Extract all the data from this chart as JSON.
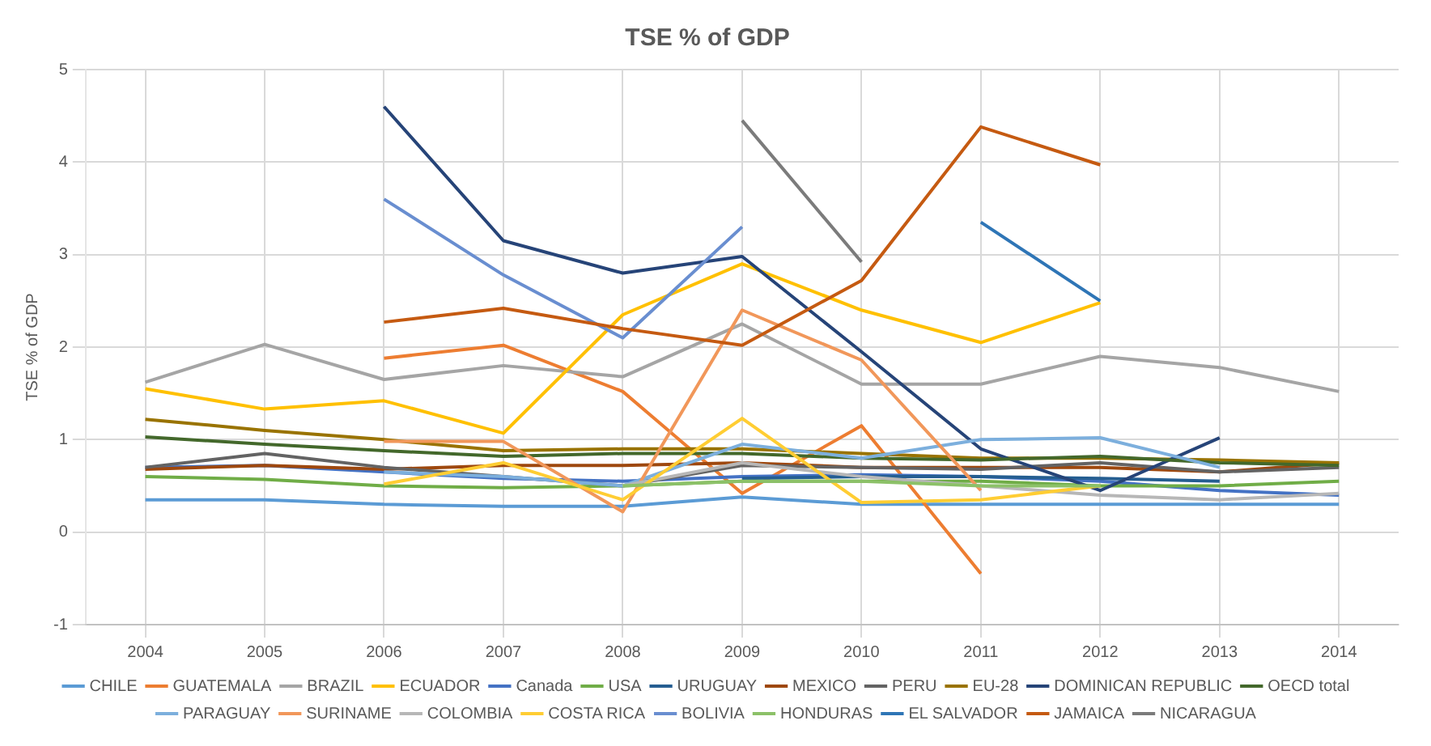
{
  "chart_data": {
    "type": "line",
    "title": "TSE % of GDP",
    "ylabel": "TSE % of GDP",
    "categories": [
      "2004",
      "2005",
      "2006",
      "2007",
      "2008",
      "2009",
      "2010",
      "2011",
      "2012",
      "2013",
      "2014"
    ],
    "ylim": [
      -1,
      5
    ],
    "yticks": [
      -1,
      0,
      1,
      2,
      3,
      4,
      5
    ],
    "grid": true,
    "legend": "bottom",
    "marker": "none",
    "line_style": "solid",
    "series": [
      {
        "name": "CHILE",
        "color": "#5b9bd5",
        "values": [
          0.35,
          0.35,
          0.3,
          0.28,
          0.28,
          0.38,
          0.3,
          0.3,
          0.3,
          0.3,
          0.3
        ]
      },
      {
        "name": "GUATEMALA",
        "color": "#ed7d31",
        "values": [
          null,
          null,
          1.88,
          2.02,
          1.52,
          0.42,
          1.15,
          -0.45,
          null,
          null,
          null
        ]
      },
      {
        "name": "BRAZIL",
        "color": "#a5a5a5",
        "values": [
          1.62,
          2.03,
          1.65,
          1.8,
          1.68,
          2.25,
          1.6,
          1.6,
          1.9,
          1.78,
          1.52
        ]
      },
      {
        "name": "ECUADOR",
        "color": "#ffc000",
        "values": [
          1.55,
          1.33,
          1.42,
          1.07,
          2.35,
          2.9,
          2.4,
          2.05,
          2.48,
          null,
          null
        ]
      },
      {
        "name": "Canada",
        "color": "#4472c4",
        "values": [
          0.7,
          0.72,
          0.65,
          0.58,
          0.55,
          0.6,
          0.62,
          0.6,
          0.55,
          0.45,
          0.4
        ]
      },
      {
        "name": "USA",
        "color": "#70ad47",
        "values": [
          0.6,
          0.57,
          0.5,
          0.48,
          0.5,
          0.55,
          0.55,
          0.55,
          0.5,
          0.5,
          0.55
        ]
      },
      {
        "name": "URUGUAY",
        "color": "#255e91",
        "values": [
          null,
          null,
          null,
          null,
          null,
          0.58,
          0.6,
          0.6,
          0.58,
          0.55,
          null
        ]
      },
      {
        "name": "MEXICO",
        "color": "#9e480e",
        "values": [
          0.68,
          0.72,
          0.68,
          0.72,
          0.72,
          0.75,
          0.7,
          0.7,
          0.7,
          0.65,
          0.75
        ]
      },
      {
        "name": "PERU",
        "color": "#636363",
        "values": [
          0.7,
          0.85,
          0.7,
          0.6,
          0.5,
          0.72,
          0.7,
          0.68,
          0.75,
          0.65,
          0.7
        ]
      },
      {
        "name": "EU-28",
        "color": "#997300",
        "values": [
          1.22,
          1.1,
          1.0,
          0.88,
          0.9,
          0.9,
          0.85,
          0.8,
          0.8,
          0.78,
          0.75
        ]
      },
      {
        "name": "DOMINICAN REPUBLIC",
        "color": "#264478",
        "values": [
          null,
          null,
          4.6,
          3.15,
          2.8,
          2.98,
          1.95,
          0.9,
          0.45,
          1.02,
          null
        ]
      },
      {
        "name": "OECD total",
        "color": "#43682b",
        "values": [
          1.03,
          0.95,
          0.88,
          0.82,
          0.85,
          0.85,
          0.8,
          0.78,
          0.82,
          0.75,
          0.72
        ]
      },
      {
        "name": "PARAGUAY",
        "color": "#7cafdd",
        "values": [
          null,
          null,
          0.65,
          0.6,
          0.5,
          0.95,
          0.8,
          1.0,
          1.02,
          0.7,
          null
        ]
      },
      {
        "name": "SURINAME",
        "color": "#f1975a",
        "values": [
          null,
          null,
          0.98,
          0.98,
          0.22,
          2.4,
          1.86,
          0.45,
          null,
          null,
          null
        ]
      },
      {
        "name": "COLOMBIA",
        "color": "#b7b7b7",
        "values": [
          null,
          null,
          null,
          null,
          0.5,
          0.75,
          0.6,
          0.5,
          0.4,
          0.35,
          0.42
        ]
      },
      {
        "name": "COSTA RICA",
        "color": "#ffcd33",
        "values": [
          null,
          null,
          0.52,
          0.75,
          0.35,
          1.23,
          0.32,
          0.35,
          0.5,
          null,
          null
        ]
      },
      {
        "name": "BOLIVIA",
        "color": "#698ed0",
        "values": [
          null,
          null,
          3.6,
          2.78,
          2.1,
          3.3,
          null,
          null,
          null,
          null,
          null
        ]
      },
      {
        "name": "HONDURAS",
        "color": "#8cc168",
        "values": [
          null,
          null,
          null,
          null,
          0.5,
          0.55,
          0.55,
          0.5,
          0.5,
          null,
          null
        ]
      },
      {
        "name": "EL SALVADOR",
        "color": "#2e75b6",
        "values": [
          null,
          null,
          null,
          null,
          null,
          null,
          null,
          3.35,
          2.5,
          null,
          null
        ]
      },
      {
        "name": "JAMAICA",
        "color": "#c55a11",
        "values": [
          null,
          null,
          2.27,
          2.42,
          2.2,
          2.02,
          2.72,
          4.38,
          3.97,
          null,
          null
        ]
      },
      {
        "name": "NICARAGUA",
        "color": "#7b7b7b",
        "values": [
          null,
          null,
          null,
          null,
          null,
          4.45,
          2.92,
          null,
          null,
          null,
          null
        ]
      }
    ]
  }
}
